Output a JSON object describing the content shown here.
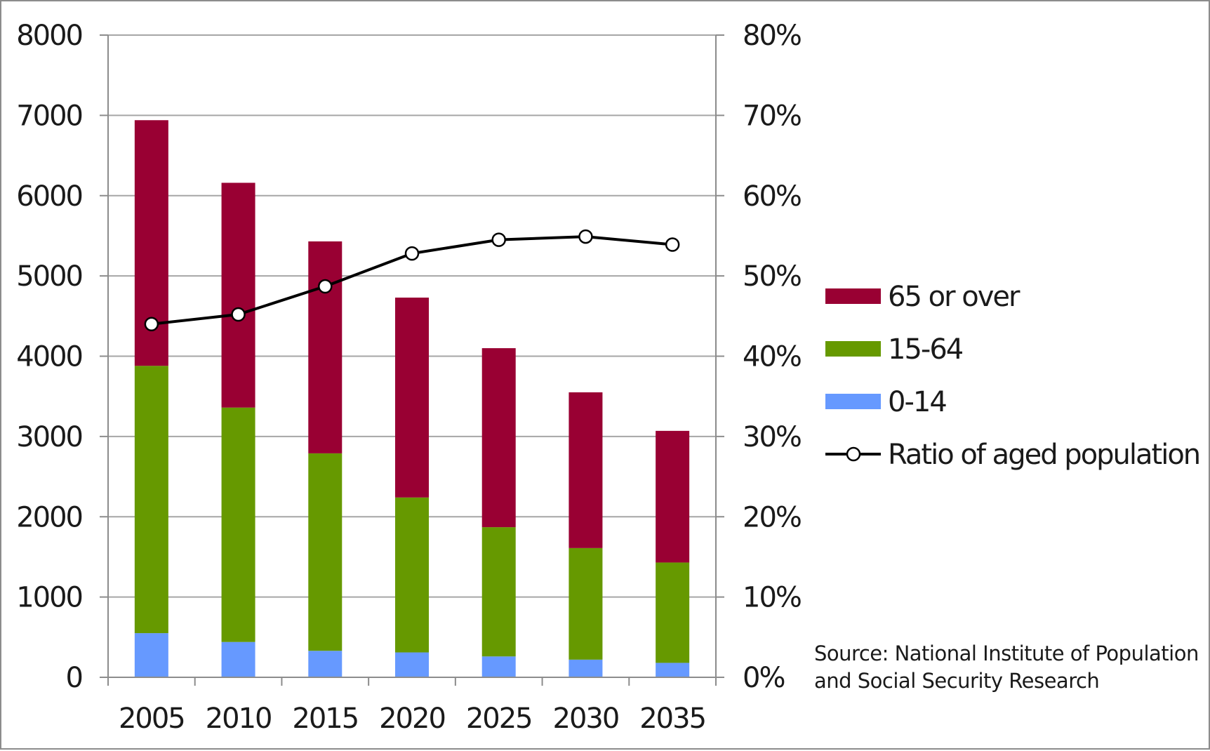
{
  "chart_data": {
    "type": "bar",
    "stacked": true,
    "categories": [
      "2005",
      "2010",
      "2015",
      "2020",
      "2025",
      "2030",
      "2035"
    ],
    "series": [
      {
        "name": "0-14",
        "values": [
          550,
          440,
          330,
          310,
          260,
          220,
          180
        ],
        "color": "#6699ff"
      },
      {
        "name": "15-64",
        "values": [
          3330,
          2920,
          2460,
          1930,
          1610,
          1390,
          1250
        ],
        "color": "#669900"
      },
      {
        "name": "65 or over",
        "values": [
          3060,
          2800,
          2640,
          2490,
          2230,
          1940,
          1640
        ],
        "color": "#990033"
      }
    ],
    "line_series": {
      "name": "Ratio of aged population",
      "axis": "right",
      "values": [
        44,
        45.2,
        48.7,
        52.8,
        54.5,
        54.9,
        53.9
      ],
      "color": "#000000"
    },
    "y_ticks": [
      "0",
      "1000",
      "2000",
      "3000",
      "4000",
      "5000",
      "6000",
      "7000",
      "8000"
    ],
    "y2_ticks": [
      "0%",
      "10%",
      "20%",
      "30%",
      "40%",
      "50%",
      "60%",
      "70%",
      "80%"
    ],
    "ylim": [
      0,
      8000
    ],
    "y2lim": [
      0,
      80
    ],
    "grid": true,
    "legend_position": "right",
    "legend_order": [
      "65 or over",
      "15-64",
      "0-14",
      "Ratio of aged population"
    ],
    "title": "",
    "xlabel": "",
    "ylabel": "",
    "source_lines": [
      "Source: National Institute of Population",
      "and Social Security Research"
    ]
  }
}
